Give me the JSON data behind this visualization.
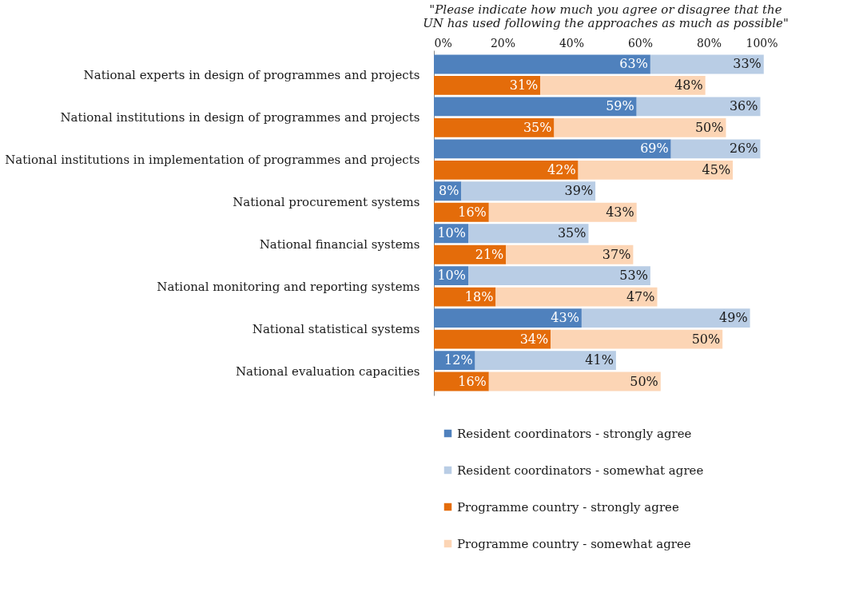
{
  "chart_data": {
    "type": "bar",
    "orientation": "horizontal",
    "stacked": true,
    "title": "\"Please indicate how much you agree or disagree that the UN has used following the approaches as much as possible\"",
    "categories": [
      "National experts in design of programmes and projects",
      null,
      "National institutions in design of programmes and projects",
      null,
      "National institutions in implementation of programmes and projects",
      null,
      "National procurement systems",
      null,
      "National financial systems",
      null,
      "National monitoring and reporting systems",
      null,
      "National statistical systems",
      null,
      "National evaluation capacities",
      null
    ],
    "series": [
      {
        "name": "Resident coordinators - strongly agree",
        "color": "#4f81bd",
        "values": [
          63,
          null,
          59,
          null,
          69,
          null,
          8,
          null,
          10,
          null,
          10,
          null,
          43,
          null,
          12,
          null
        ],
        "value_labels": [
          "63%",
          null,
          "59%",
          null,
          "69%",
          null,
          "8%",
          null,
          "10%",
          null,
          "10%",
          null,
          "43%",
          null,
          "12%",
          null
        ]
      },
      {
        "name": "Resident coordinators - somewhat agree",
        "color": "#b9cde5",
        "values": [
          33,
          null,
          36,
          null,
          26,
          null,
          39,
          null,
          35,
          null,
          53,
          null,
          49,
          null,
          41,
          null
        ],
        "value_labels": [
          "33%",
          null,
          "36%",
          null,
          "26%",
          null,
          "39%",
          null,
          "35%",
          null,
          "53%",
          null,
          "49%",
          null,
          "41%",
          null
        ]
      },
      {
        "name": "Programme country - strongly agree",
        "color": "#e46c0a",
        "values": [
          null,
          31,
          null,
          35,
          null,
          42,
          null,
          16,
          null,
          21,
          null,
          18,
          null,
          34,
          null,
          16
        ],
        "value_labels": [
          null,
          "31%",
          null,
          "35%",
          null,
          "42%",
          null,
          "16%",
          null,
          "21%",
          null,
          "18%",
          null,
          "34%",
          null,
          "16%"
        ]
      },
      {
        "name": "Programme country - somewhat agree",
        "color": "#fcd5b5",
        "values": [
          null,
          48,
          null,
          50,
          null,
          45,
          null,
          43,
          null,
          37,
          null,
          47,
          null,
          50,
          null,
          50
        ],
        "value_labels": [
          null,
          "48%",
          null,
          "50%",
          null,
          "45%",
          null,
          "43%",
          null,
          "37%",
          null,
          "47%",
          null,
          "50%",
          null,
          "50%"
        ]
      }
    ],
    "xlim": [
      0,
      100
    ],
    "xticks": [
      {
        "value": 0,
        "label": "0%"
      },
      {
        "value": 20,
        "label": "20%"
      },
      {
        "value": 40,
        "label": "40%"
      },
      {
        "value": 60,
        "label": "60%"
      },
      {
        "value": 80,
        "label": "80%"
      },
      {
        "value": 100,
        "label": "100%"
      }
    ],
    "grid": false,
    "legend": "bottom"
  }
}
